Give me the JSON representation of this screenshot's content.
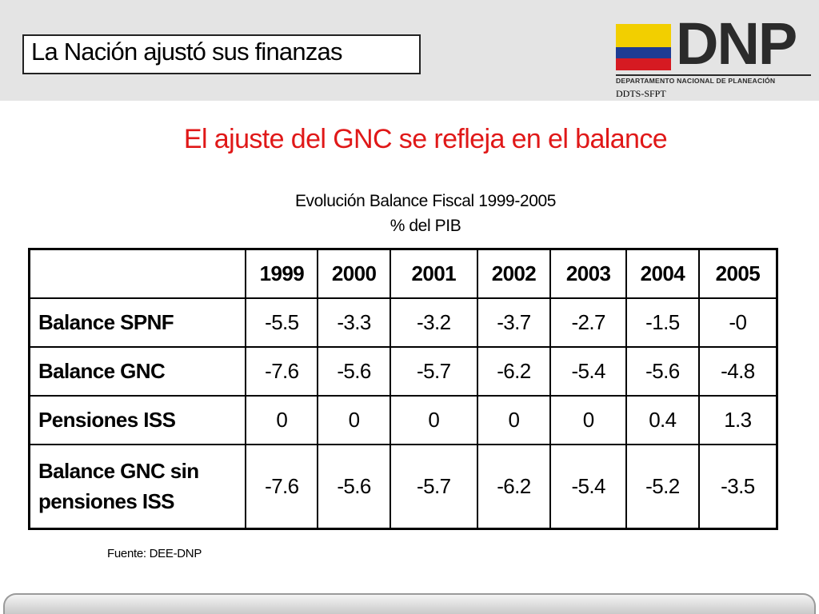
{
  "header": {
    "title": "La Nación ajustó sus finanzas",
    "logo_text": "DNP",
    "logo_subtitle": "DEPARTAMENTO NACIONAL DE PLANEACIÓN",
    "unit_label": "DDTS-SFPT",
    "flag_colors": [
      "#f2cf00",
      "#1e3c93",
      "#d61a22"
    ]
  },
  "heading": "El ajuste del GNC se refleja en el balance",
  "table_caption": {
    "line1": "Evolución Balance Fiscal 1999-2005",
    "line2": "% del PIB"
  },
  "table": {
    "columns": [
      "1999",
      "2000",
      "2001",
      "2002",
      "2003",
      "2004",
      "2005"
    ],
    "rows": [
      {
        "label": "Balance SPNF",
        "values": [
          "-5.5",
          "-3.3",
          "-3.2",
          "-3.7",
          "-2.7",
          "-1.5",
          "-0"
        ]
      },
      {
        "label": "Balance GNC",
        "values": [
          "-7.6",
          "-5.6",
          "-5.7",
          "-6.2",
          "-5.4",
          "-5.6",
          "-4.8"
        ]
      },
      {
        "label": "Pensiones ISS",
        "values": [
          "0",
          "0",
          "0",
          "0",
          "0",
          "0.4",
          "1.3"
        ]
      },
      {
        "label_line1": "Balance GNC sin",
        "label_line2": "pensiones ISS",
        "values": [
          "-7.6",
          "-5.6",
          "-5.7",
          "-6.2",
          "-5.4",
          "-5.2",
          "-3.5"
        ]
      }
    ]
  },
  "source": "Fuente: DEE-DNP"
}
